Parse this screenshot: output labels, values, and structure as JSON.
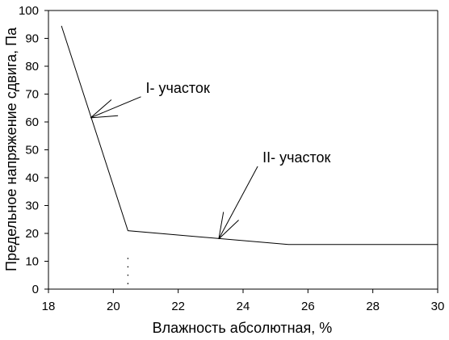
{
  "chart_data": {
    "type": "line",
    "title": "",
    "xlabel": "Влажность абсолютная, %",
    "ylabel": "Предельное напряжение сдвига, Па",
    "xlim": [
      18,
      30
    ],
    "ylim": [
      0,
      100
    ],
    "x_ticks": [
      18,
      20,
      22,
      24,
      26,
      28,
      30
    ],
    "y_ticks": [
      0,
      10,
      20,
      30,
      40,
      50,
      60,
      70,
      80,
      90,
      100
    ],
    "grid": false,
    "legend": "none",
    "series": [
      {
        "points": [
          {
            "x": 18.4,
            "y": 94.5
          },
          {
            "x": 20.45,
            "y": 21
          },
          {
            "x": 25.4,
            "y": 16
          },
          {
            "x": 30,
            "y": 16
          }
        ]
      }
    ],
    "annotations": [
      {
        "label": "I- участок",
        "label_x": 21.0,
        "label_y": 70.5,
        "target_x": 19.3,
        "target_y": 61.5
      },
      {
        "label": "II- участок",
        "label_x": 24.6,
        "label_y": 45.5,
        "target_x": 23.25,
        "target_y": 18
      }
    ],
    "reference_x": 20.45,
    "colors": {
      "line": "#000000",
      "axis": "#000000",
      "background": "#ffffff"
    }
  }
}
